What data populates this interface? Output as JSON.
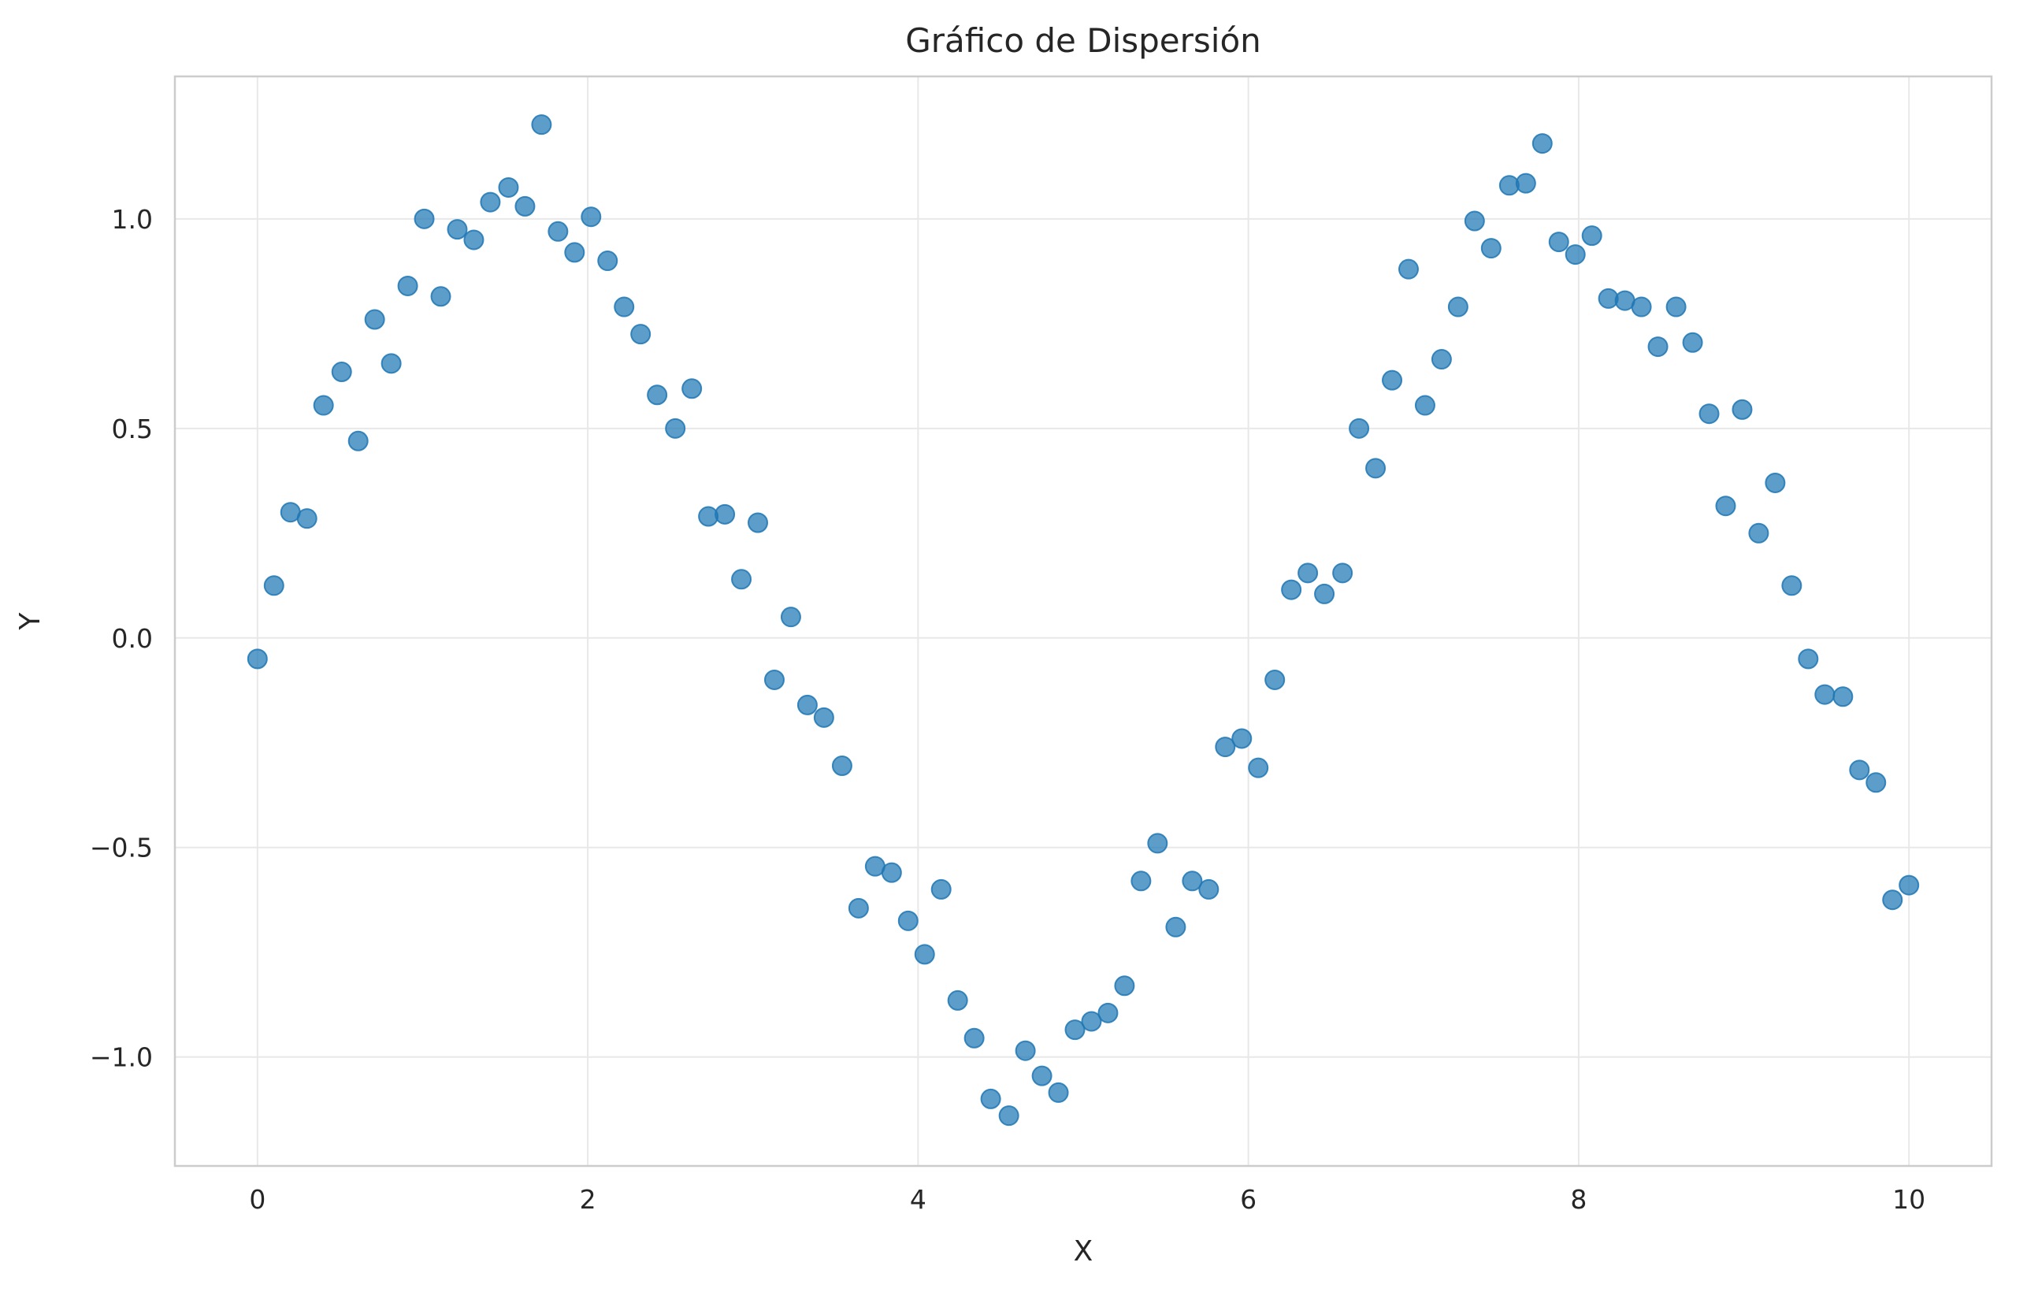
{
  "chart_data": {
    "type": "scatter",
    "title": "Gráfico de Dispersión",
    "xlabel": "X",
    "ylabel": "Y",
    "xlim": [
      -0.5,
      10.5
    ],
    "ylim": [
      -1.26,
      1.34
    ],
    "grid": true,
    "colors": {
      "point": "#1f77b4"
    },
    "xticks": [
      {
        "value": 0,
        "label": "0"
      },
      {
        "value": 2,
        "label": "2"
      },
      {
        "value": 4,
        "label": "4"
      },
      {
        "value": 6,
        "label": "6"
      },
      {
        "value": 8,
        "label": "8"
      },
      {
        "value": 10,
        "label": "10"
      }
    ],
    "yticks": [
      {
        "value": -1.0,
        "label": "−1.0"
      },
      {
        "value": -0.5,
        "label": "−0.5"
      },
      {
        "value": 0.0,
        "label": "0.0"
      },
      {
        "value": 0.5,
        "label": "0.5"
      },
      {
        "value": 1.0,
        "label": "1.0"
      }
    ],
    "x": [
      0.0,
      0.1,
      0.2,
      0.3,
      0.4,
      0.51,
      0.61,
      0.71,
      0.81,
      0.91,
      1.01,
      1.11,
      1.21,
      1.31,
      1.41,
      1.52,
      1.62,
      1.72,
      1.82,
      1.92,
      2.02,
      2.12,
      2.22,
      2.32,
      2.42,
      2.53,
      2.63,
      2.73,
      2.83,
      2.93,
      3.03,
      3.13,
      3.23,
      3.33,
      3.43,
      3.54,
      3.64,
      3.74,
      3.84,
      3.94,
      4.04,
      4.14,
      4.24,
      4.34,
      4.44,
      4.55,
      4.65,
      4.75,
      4.85,
      4.95,
      5.05,
      5.15,
      5.25,
      5.35,
      5.45,
      5.56,
      5.66,
      5.76,
      5.86,
      5.96,
      6.06,
      6.16,
      6.26,
      6.36,
      6.46,
      6.57,
      6.67,
      6.77,
      6.87,
      6.97,
      7.07,
      7.17,
      7.27,
      7.37,
      7.47,
      7.58,
      7.68,
      7.78,
      7.88,
      7.98,
      8.08,
      8.18,
      8.28,
      8.38,
      8.48,
      8.59,
      8.69,
      8.79,
      8.89,
      8.99,
      9.09,
      9.19,
      9.29,
      9.39,
      9.49,
      9.6,
      9.7,
      9.8,
      9.9,
      10.0
    ],
    "y": [
      -0.05,
      0.125,
      0.3,
      0.285,
      0.555,
      0.635,
      0.47,
      0.76,
      0.655,
      0.84,
      1.0,
      0.815,
      0.975,
      0.95,
      1.04,
      1.075,
      1.03,
      1.225,
      0.97,
      0.92,
      1.005,
      0.9,
      0.79,
      0.725,
      0.58,
      0.5,
      0.595,
      0.29,
      0.295,
      0.14,
      0.275,
      -0.1,
      0.05,
      -0.16,
      -0.19,
      -0.305,
      -0.645,
      -0.545,
      -0.56,
      -0.675,
      -0.755,
      -0.6,
      -0.865,
      -0.955,
      -1.1,
      -1.14,
      -0.985,
      -1.045,
      -1.085,
      -0.935,
      -0.915,
      -0.895,
      -0.83,
      -0.58,
      -0.49,
      -0.69,
      -0.58,
      -0.6,
      -0.26,
      -0.24,
      -0.31,
      -0.1,
      0.115,
      0.155,
      0.105,
      0.155,
      0.5,
      0.405,
      0.615,
      0.88,
      0.555,
      0.665,
      0.79,
      0.995,
      0.93,
      1.08,
      1.085,
      1.18,
      0.945,
      0.915,
      0.96,
      0.81,
      0.805,
      0.79,
      0.695,
      0.79,
      0.705,
      0.535,
      0.315,
      0.545,
      0.25,
      0.37,
      0.125,
      -0.05,
      -0.135,
      -0.14,
      -0.315,
      -0.345,
      -0.625,
      -0.59
    ]
  }
}
